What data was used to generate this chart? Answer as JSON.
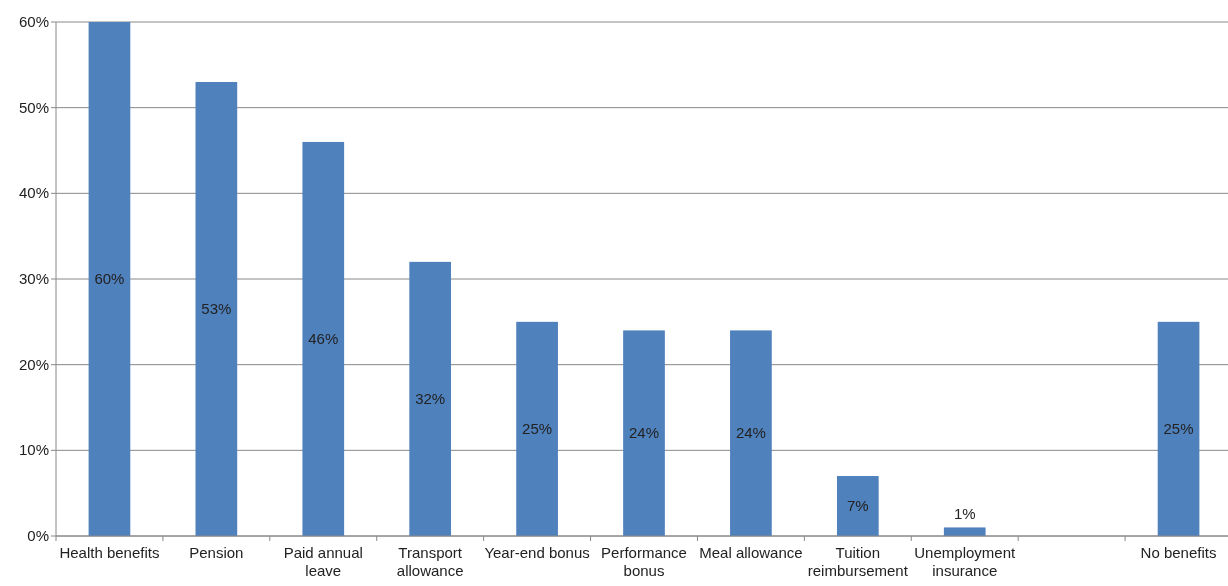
{
  "chart_data": {
    "type": "bar",
    "categories": [
      "Health benefits",
      "Pension",
      "Paid annual leave",
      "Transport allowance",
      "Year-end bonus",
      "Performance bonus",
      "Meal allowance",
      "Tuition reimbursement",
      "Unemployment insurance",
      null,
      "No benefits"
    ],
    "values": [
      60,
      53,
      46,
      32,
      25,
      24,
      24,
      7,
      1,
      null,
      25
    ],
    "value_labels": [
      "60%",
      "53%",
      "46%",
      "32%",
      "25%",
      "24%",
      "24%",
      "7%",
      "1%",
      null,
      "25%"
    ],
    "color": "#4f81bd",
    "ylim": [
      0,
      60
    ],
    "yticks": [
      {
        "value": 0,
        "label": "0%"
      },
      {
        "value": 10,
        "label": "10%"
      },
      {
        "value": 20,
        "label": "20%"
      },
      {
        "value": 30,
        "label": "30%"
      },
      {
        "value": 40,
        "label": "40%"
      },
      {
        "value": 50,
        "label": "50%"
      },
      {
        "value": 60,
        "label": "60%"
      }
    ],
    "grid": "y"
  }
}
